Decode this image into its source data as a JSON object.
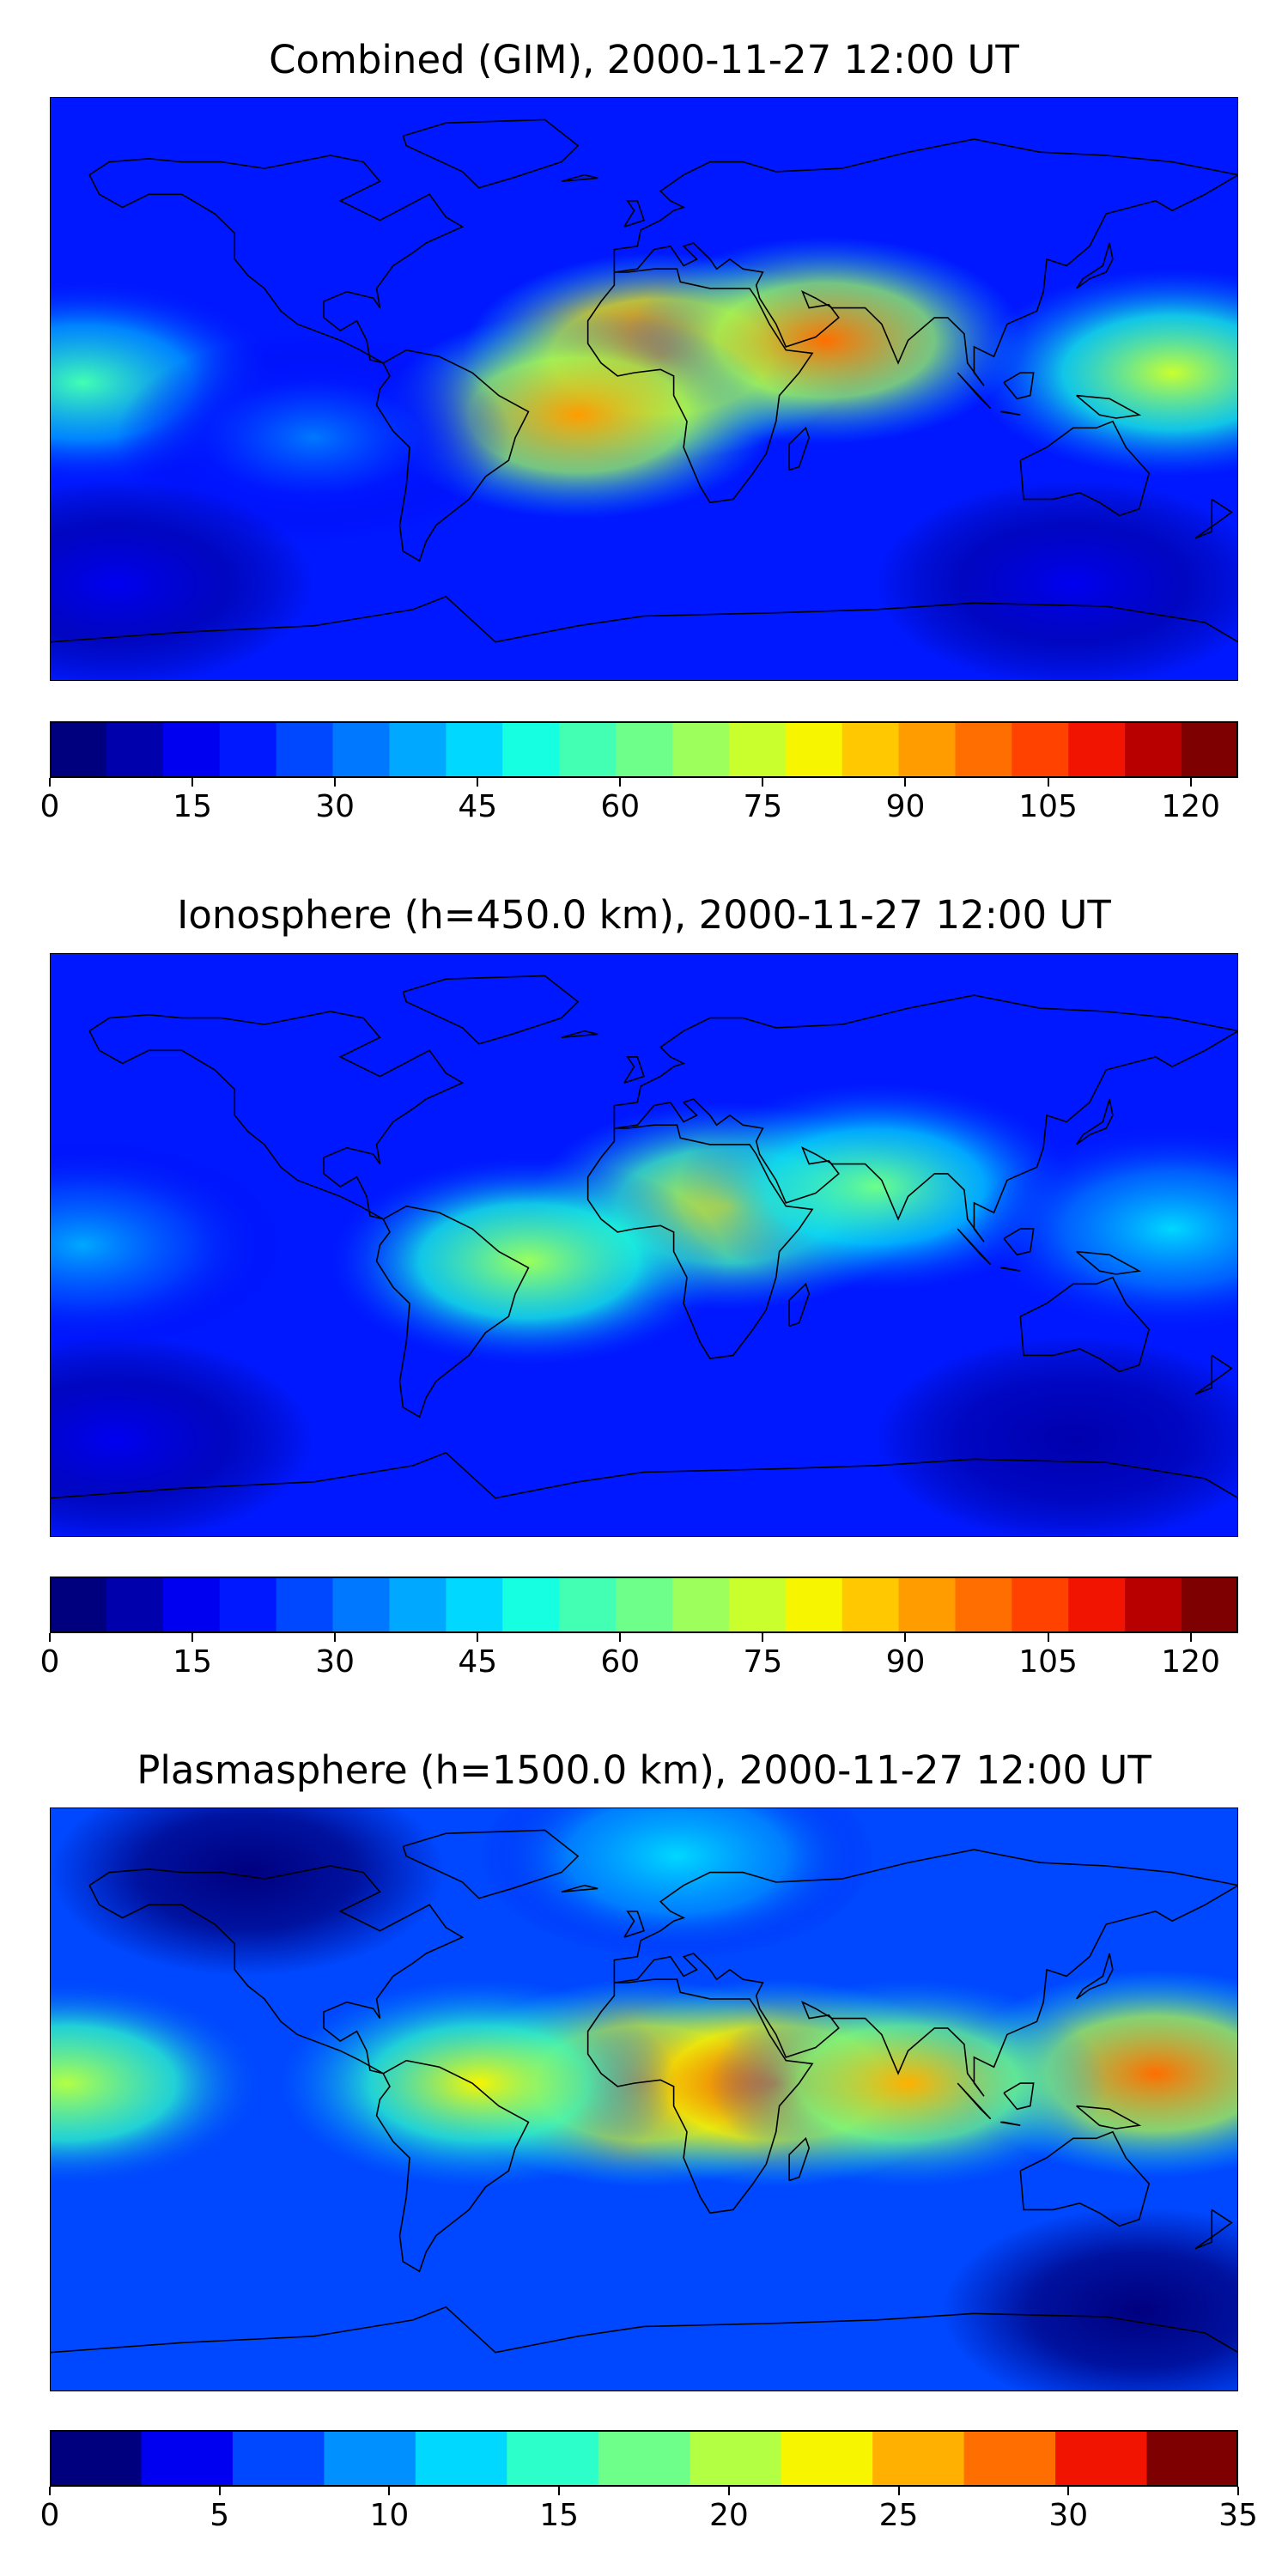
{
  "colors": {
    "jet": [
      "#00007f",
      "#0000ad",
      "#0000f1",
      "#0018ff",
      "#0048ff",
      "#0078ff",
      "#00a8ff",
      "#00d8ff",
      "#16ffe0",
      "#42ffb3",
      "#6dff89",
      "#9cff5b",
      "#caff2e",
      "#f8f500",
      "#ffc800",
      "#ff9c00",
      "#ff6e00",
      "#ff4200",
      "#f11400",
      "#b90000",
      "#7f0000"
    ],
    "plasma_scale": [
      "#00007f",
      "#0000f1",
      "#0048ff",
      "#0090ff",
      "#00d8ff",
      "#2cffc9",
      "#6dff89",
      "#b3ff44",
      "#f8f500",
      "#ffb000",
      "#ff6e00",
      "#f11400",
      "#7f0000"
    ],
    "coastline": "#000000"
  },
  "chart_data": [
    {
      "type": "heatmap",
      "title": "Combined (GIM), 2000-11-27 12:00 UT",
      "colorbar": {
        "min": 0,
        "max": 125,
        "step": 5,
        "ticks": [
          "0",
          "15",
          "30",
          "45",
          "60",
          "75",
          "90",
          "105",
          "120"
        ]
      },
      "grid": false,
      "features": [
        {
          "lon": 5,
          "lat": 10,
          "value": 112
        },
        {
          "lon": 55,
          "lat": 15,
          "value": 100
        },
        {
          "lon": -20,
          "lat": -8,
          "value": 95
        },
        {
          "lon": 160,
          "lat": 5,
          "value": 75
        },
        {
          "lon": -170,
          "lat": 2,
          "value": 55
        },
        {
          "lon": -100,
          "lat": -15,
          "value": 30
        },
        {
          "lon": 130,
          "lat": -60,
          "value": 12
        },
        {
          "lon": -160,
          "lat": -60,
          "value": 12
        }
      ]
    },
    {
      "type": "heatmap",
      "title": "Ionosphere  (h=450.0 km), 2000-11-27 12:00 UT",
      "colorbar": {
        "min": 0,
        "max": 125,
        "step": 5,
        "ticks": [
          "0",
          "15",
          "30",
          "45",
          "60",
          "75",
          "90",
          "105",
          "120"
        ]
      },
      "grid": false,
      "features": [
        {
          "lon": 25,
          "lat": 12,
          "value": 82
        },
        {
          "lon": -35,
          "lat": -5,
          "value": 70
        },
        {
          "lon": 70,
          "lat": 18,
          "value": 65
        },
        {
          "lon": 160,
          "lat": 5,
          "value": 45
        },
        {
          "lon": -170,
          "lat": 0,
          "value": 40
        },
        {
          "lon": 130,
          "lat": -60,
          "value": 10
        },
        {
          "lon": -160,
          "lat": -60,
          "value": 12
        }
      ]
    },
    {
      "type": "heatmap",
      "title": "Plasmasphere (h=1500.0 km), 2000-11-27 12:00 UT",
      "colorbar": {
        "min": 0,
        "max": 35,
        "step": 2.5,
        "ticks": [
          "0",
          "5",
          "10",
          "15",
          "20",
          "25",
          "30",
          "35"
        ]
      },
      "grid": false,
      "features": [
        {
          "lon": 0,
          "lat": 5,
          "value": 31
        },
        {
          "lon": 40,
          "lat": 5,
          "value": 31
        },
        {
          "lon": 155,
          "lat": 8,
          "value": 29
        },
        {
          "lon": 80,
          "lat": 5,
          "value": 25
        },
        {
          "lon": -50,
          "lat": 5,
          "value": 22
        },
        {
          "lon": -175,
          "lat": 5,
          "value": 20
        },
        {
          "lon": 10,
          "lat": 75,
          "value": 12
        },
        {
          "lon": -120,
          "lat": 70,
          "value": 1
        },
        {
          "lon": 150,
          "lat": -65,
          "value": 2
        }
      ]
    }
  ]
}
